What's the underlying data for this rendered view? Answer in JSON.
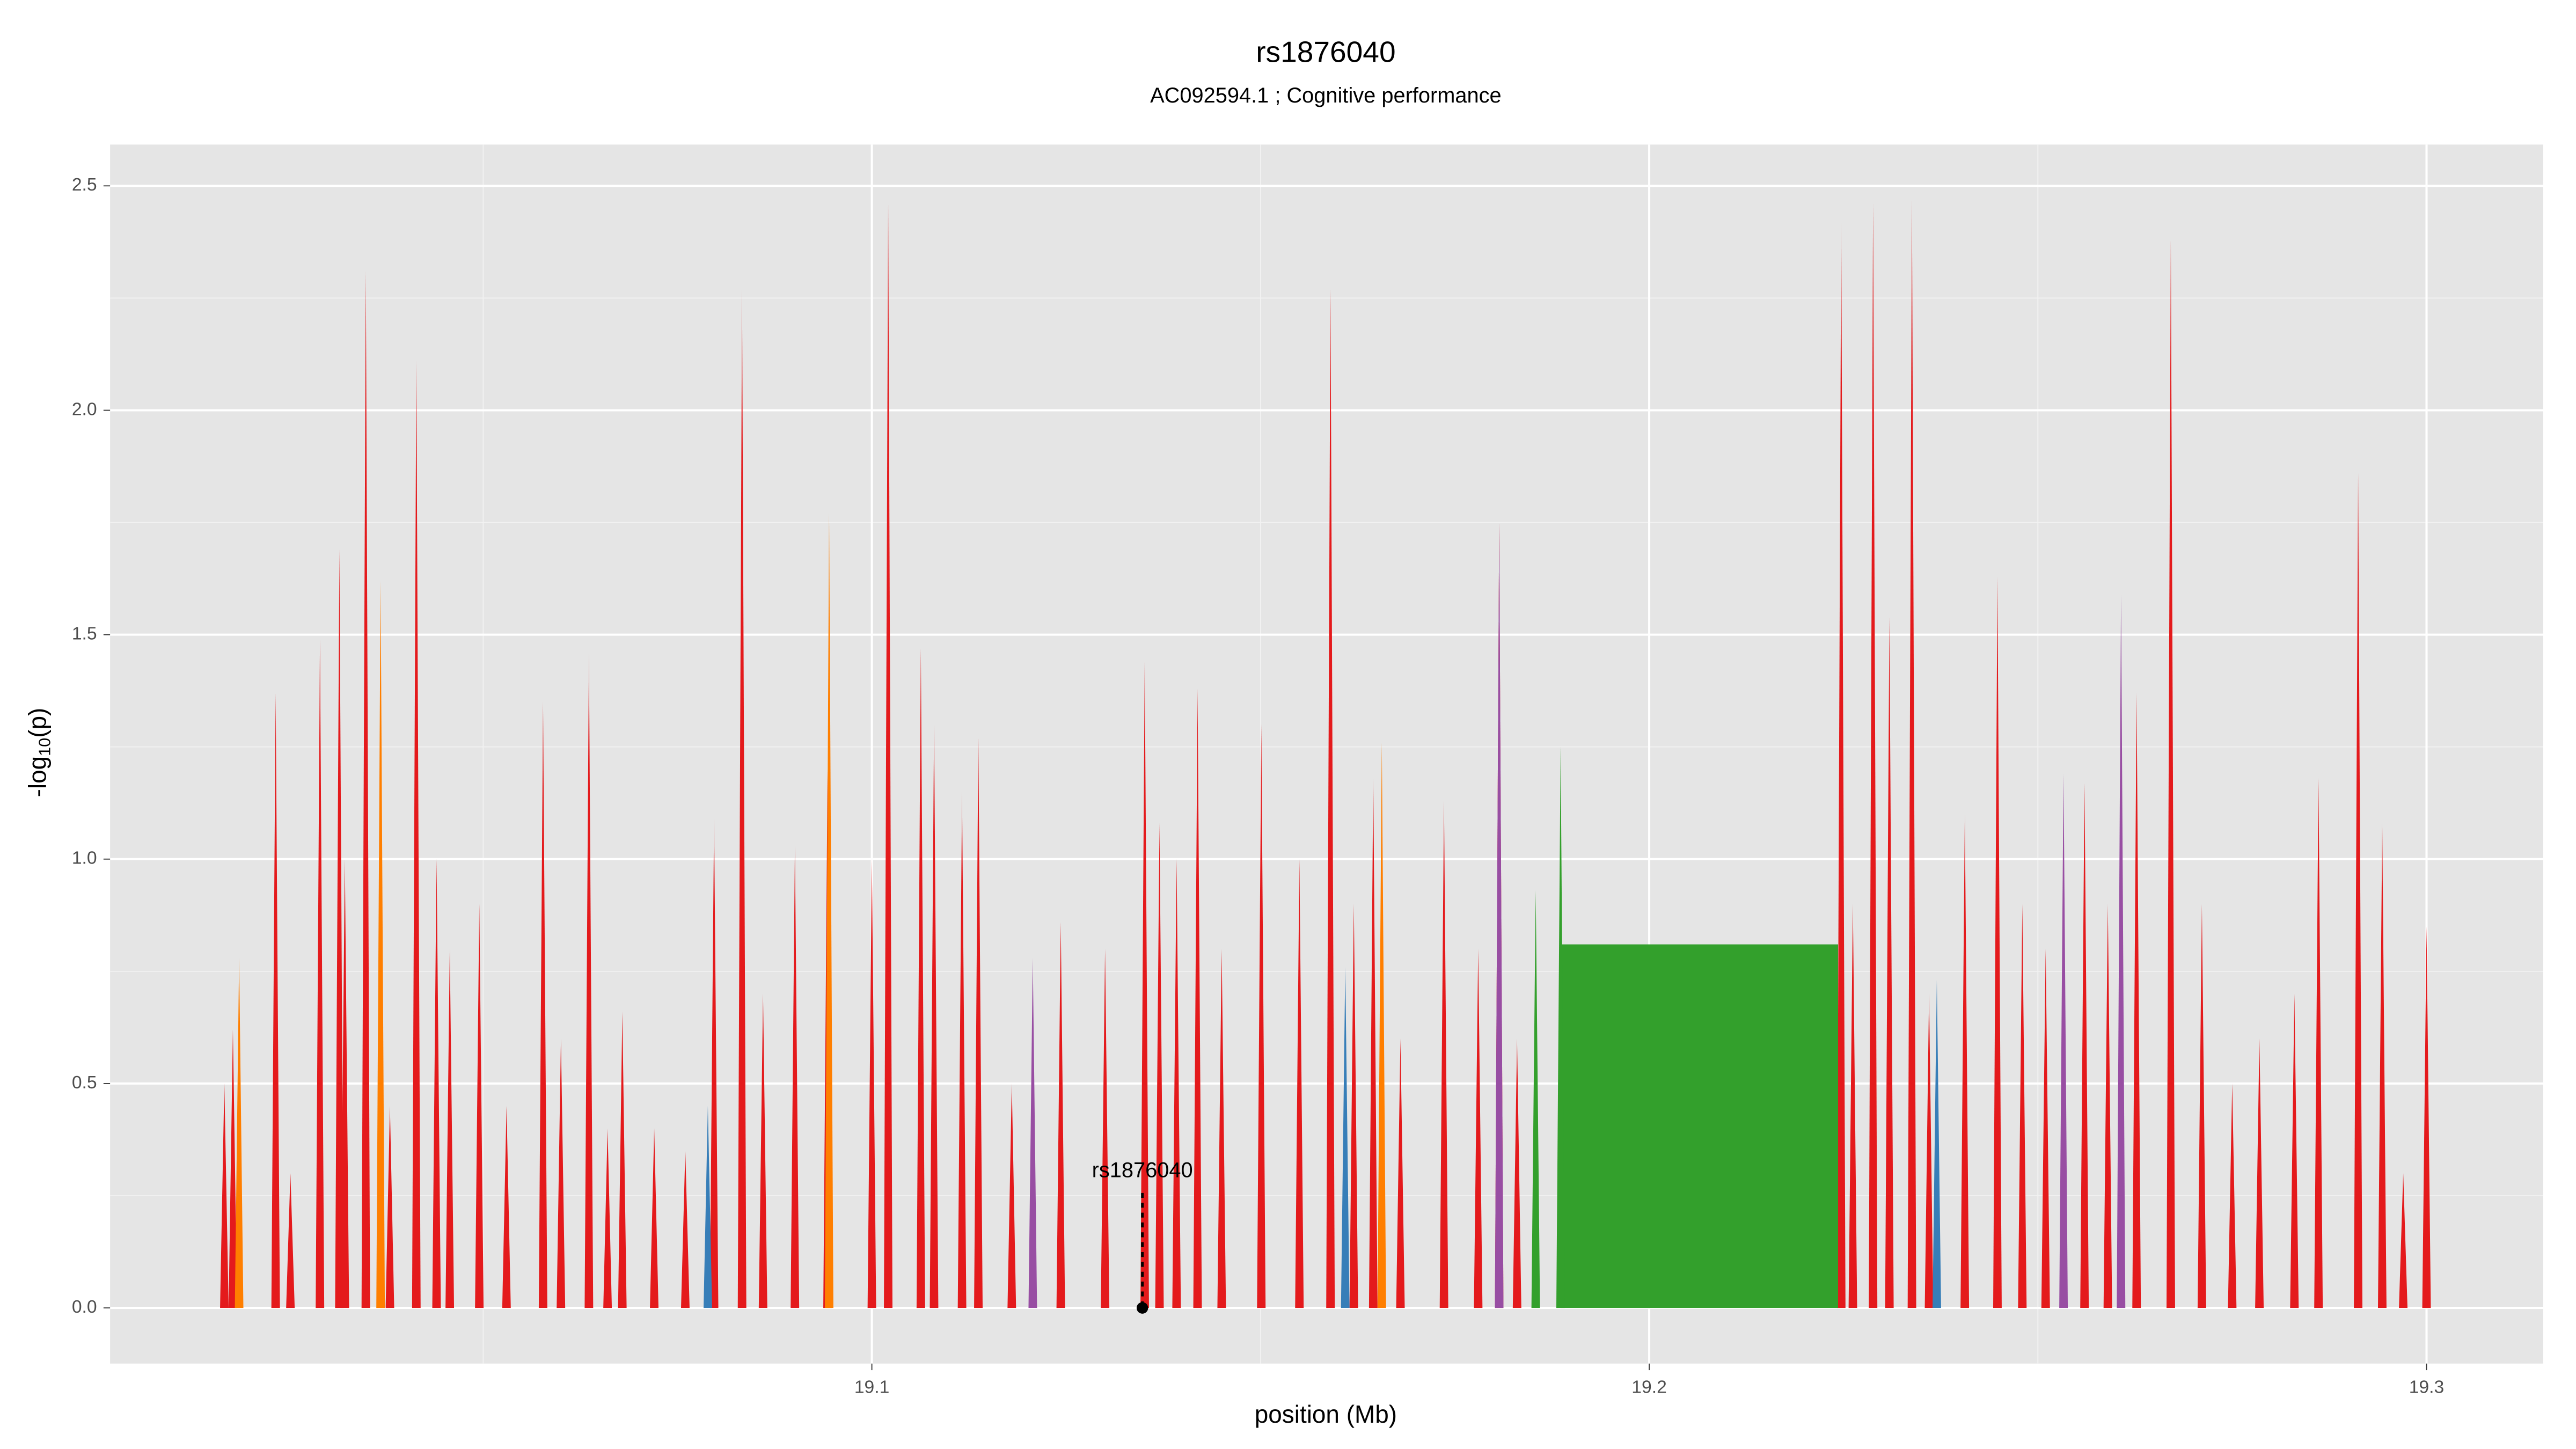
{
  "chart_data": {
    "type": "area",
    "title": "rs1876040",
    "subtitle": "AC092594.1 ; Cognitive performance",
    "xlabel": "position (Mb)",
    "ylabel": [
      "-log",
      "10",
      "(p)"
    ],
    "xlim": [
      19.002,
      19.315
    ],
    "ylim": [
      -0.124,
      2.592
    ],
    "xticks": [
      19.1,
      19.2,
      19.3
    ],
    "yticks": [
      {
        "value": 0,
        "label": "0.0"
      },
      0.5,
      {
        "value": 1,
        "label": "1.0"
      },
      1.5,
      {
        "value": 2,
        "label": "2.0"
      },
      2.5
    ],
    "x_minor_grid": [
      19.05,
      19.15,
      19.25
    ],
    "y_minor_grid": [
      0.25,
      0.75,
      1.25,
      1.75,
      2.25
    ],
    "grid": true,
    "series": [
      {
        "color": "#e41a1c",
        "x": [
          19.0167,
          19.0178,
          19.0233,
          19.0252,
          19.029,
          19.0315,
          19.0322,
          19.0349,
          19.038,
          19.0414,
          19.044,
          19.0457,
          19.0495,
          19.053,
          19.0577,
          19.06,
          19.0636,
          19.066,
          19.0679,
          19.072,
          19.076,
          19.0797,
          19.0833,
          19.086,
          19.0901,
          19.0943,
          19.1,
          19.1021,
          19.1063,
          19.108,
          19.1116,
          19.1137,
          19.118,
          19.1243,
          19.13,
          19.1351,
          19.137,
          19.1392,
          19.1419,
          19.145,
          19.1501,
          19.155,
          19.159,
          19.162,
          19.1645,
          19.168,
          19.1736,
          19.178,
          19.1807,
          19.183,
          19.2247,
          19.2262,
          19.2288,
          19.2309,
          19.2338,
          19.236,
          19.2406,
          19.2448,
          19.248,
          19.251,
          19.256,
          19.259,
          19.2627,
          19.2671,
          19.2711,
          19.275,
          19.2785,
          19.283,
          19.2861,
          19.2912,
          19.2943,
          19.297,
          19.3
        ],
        "values": [
          0.5,
          0.62,
          1.37,
          0.3,
          1.49,
          1.69,
          1.0,
          2.31,
          0.45,
          2.11,
          1.0,
          0.8,
          0.9,
          0.45,
          1.35,
          0.6,
          1.46,
          0.4,
          0.66,
          0.4,
          0.35,
          1.09,
          2.27,
          0.7,
          1.03,
          1.2,
          1.0,
          2.46,
          1.47,
          1.3,
          1.15,
          1.27,
          0.5,
          0.86,
          0.8,
          1.44,
          1.08,
          1.0,
          1.38,
          0.8,
          1.3,
          1.0,
          2.27,
          0.9,
          1.18,
          0.6,
          1.13,
          0.8,
          1.75,
          0.6,
          2.42,
          0.9,
          2.46,
          1.54,
          2.47,
          0.7,
          1.1,
          1.63,
          0.9,
          0.8,
          1.17,
          0.9,
          1.37,
          2.38,
          0.9,
          0.5,
          0.6,
          0.7,
          1.18,
          1.86,
          1.08,
          0.3,
          0.85
        ]
      },
      {
        "color": "#ff7f00",
        "x": [
          19.0186,
          19.0368,
          19.0945,
          19.1656
        ],
        "values": [
          0.78,
          1.62,
          1.77,
          1.26
        ]
      },
      {
        "color": "#984ea3",
        "x": [
          19.1207,
          19.1807,
          19.2533,
          19.2607
        ],
        "values": [
          0.78,
          1.75,
          1.19,
          1.59
        ]
      },
      {
        "color": "#377eb8",
        "x": [
          19.0789,
          19.1609,
          19.237
        ],
        "values": [
          0.45,
          0.76,
          0.73
        ]
      },
      {
        "color": "#33a02c",
        "x": [
          19.1854,
          19.1886
        ],
        "values": [
          0.93,
          1.25
        ],
        "block": {
          "xmin": 19.1886,
          "xmax": 19.2243,
          "value": 0.81
        }
      }
    ],
    "annotation": {
      "text": "rs1876040",
      "x": 19.1348,
      "y": 0
    }
  }
}
